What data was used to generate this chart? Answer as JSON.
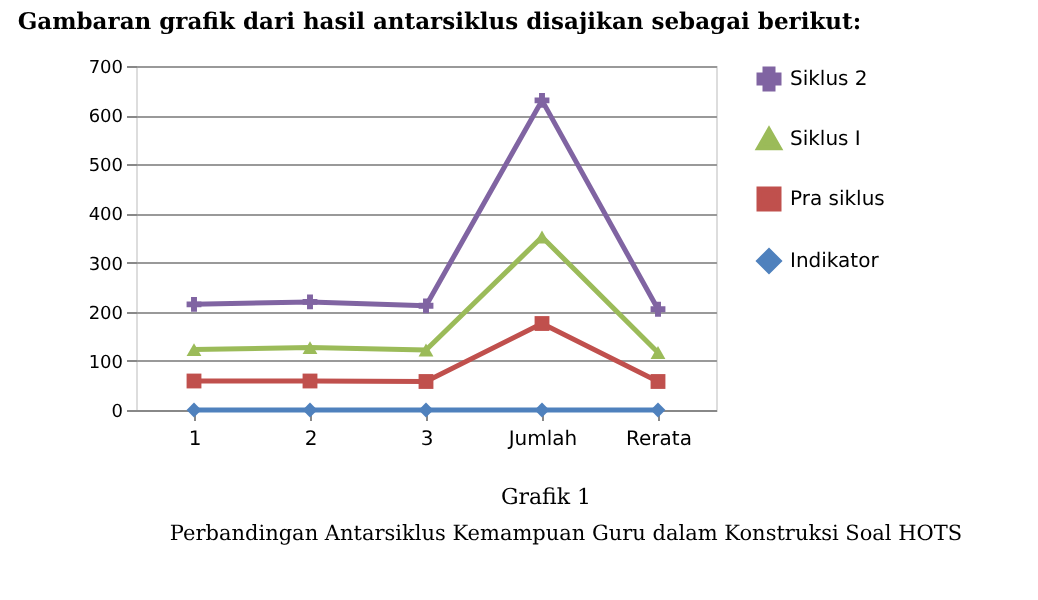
{
  "chart_data": {
    "type": "line",
    "title": "Gambaran grafik dari hasil antarsiklus disajikan sebagai berikut:",
    "categories": [
      "1",
      "2",
      "3",
      "Jumlah",
      "Rerata"
    ],
    "series": [
      {
        "name": "Siklus 2",
        "color": "#8064a2",
        "marker": "cross",
        "values": [
          215,
          220,
          212,
          630,
          205
        ]
      },
      {
        "name": "Siklus I",
        "color": "#9bbb59",
        "marker": "triangle",
        "values": [
          123,
          127,
          122,
          352,
          117
        ]
      },
      {
        "name": "Pra siklus",
        "color": "#c0504d",
        "marker": "square",
        "values": [
          59,
          59,
          58,
          176,
          58
        ]
      },
      {
        "name": "Indikator",
        "color": "#4f81bd",
        "marker": "diamond",
        "values": [
          0,
          0,
          0,
          0,
          0
        ]
      }
    ],
    "ylim": [
      0,
      700
    ],
    "yticks": [
      0,
      100,
      200,
      300,
      400,
      500,
      600,
      700
    ],
    "grid": "y",
    "legend": "right",
    "annotations": [
      "Grafik 1",
      "Perbandingan Antarsiklus Kemampuan Guru dalam Konstruksi Soal HOTS"
    ]
  }
}
